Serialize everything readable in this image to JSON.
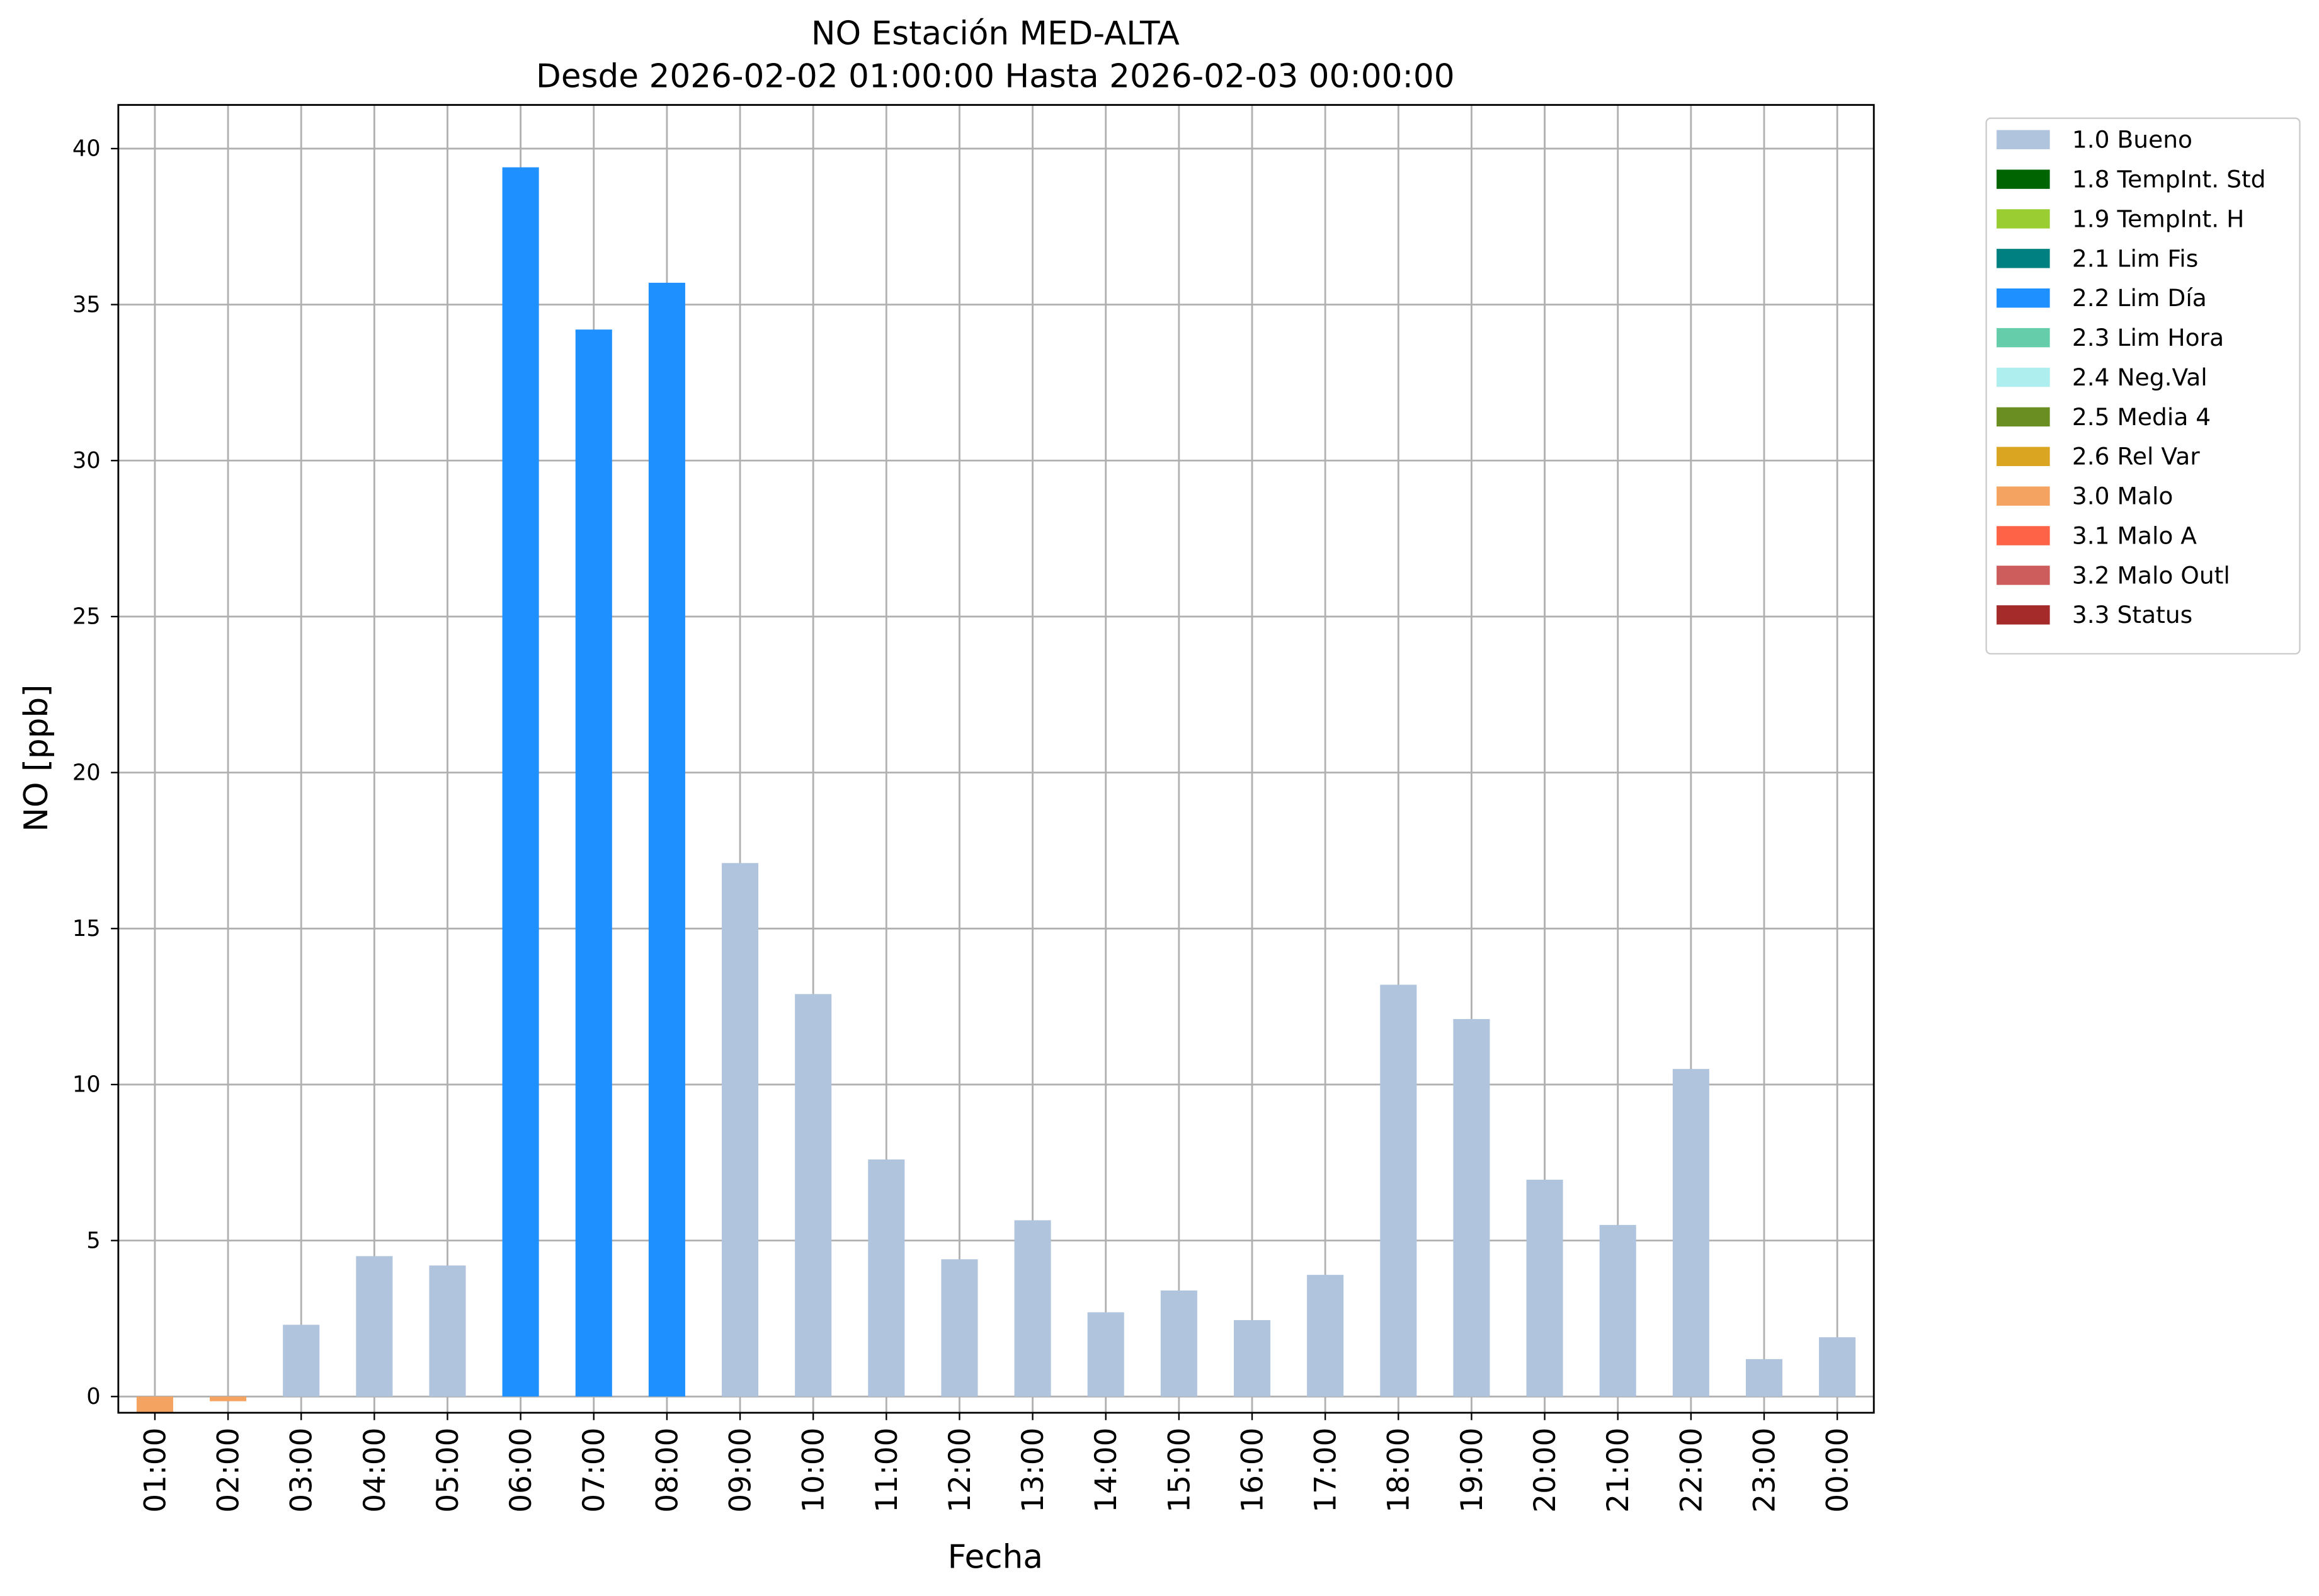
{
  "chart_data": {
    "type": "bar",
    "title": "NO Estación MED-ALTA",
    "subtitle": "Desde 2026-02-02 01:00:00 Hasta 2026-02-03 00:00:00",
    "x_label": "Fecha",
    "y_label": "NO [ppb]",
    "categories": [
      "01:00",
      "02:00",
      "03:00",
      "04:00",
      "05:00",
      "06:00",
      "07:00",
      "08:00",
      "09:00",
      "10:00",
      "11:00",
      "12:00",
      "13:00",
      "14:00",
      "15:00",
      "16:00",
      "17:00",
      "18:00",
      "19:00",
      "20:00",
      "21:00",
      "22:00",
      "23:00",
      "00:00"
    ],
    "series": [
      {
        "name": "1.0 Bueno",
        "color": "#b0c4de",
        "values": [
          null,
          null,
          2.3,
          4.5,
          4.2,
          null,
          null,
          null,
          17.1,
          12.9,
          7.6,
          4.4,
          5.65,
          2.7,
          3.4,
          2.45,
          3.9,
          13.2,
          12.1,
          6.95,
          5.5,
          10.5,
          1.2,
          1.9
        ]
      },
      {
        "name": "1.8 TempInt. Std",
        "color": "#006400",
        "values": [
          null,
          null,
          null,
          null,
          null,
          null,
          null,
          null,
          null,
          null,
          null,
          null,
          null,
          null,
          null,
          null,
          null,
          null,
          null,
          null,
          null,
          null,
          null,
          null
        ]
      },
      {
        "name": "1.9 TempInt. H",
        "color": "#9acd32",
        "values": [
          null,
          null,
          null,
          null,
          null,
          null,
          null,
          null,
          null,
          null,
          null,
          null,
          null,
          null,
          null,
          null,
          null,
          null,
          null,
          null,
          null,
          null,
          null,
          null
        ]
      },
      {
        "name": "2.1 Lim Fis",
        "color": "#008080",
        "values": [
          null,
          null,
          null,
          null,
          null,
          null,
          null,
          null,
          null,
          null,
          null,
          null,
          null,
          null,
          null,
          null,
          null,
          null,
          null,
          null,
          null,
          null,
          null,
          null
        ]
      },
      {
        "name": "2.2 Lim Día",
        "color": "#1e90ff",
        "values": [
          null,
          null,
          null,
          null,
          null,
          39.4,
          34.2,
          35.7,
          null,
          null,
          null,
          null,
          null,
          null,
          null,
          null,
          null,
          null,
          null,
          null,
          null,
          null,
          null,
          null
        ]
      },
      {
        "name": "2.3 Lim Hora",
        "color": "#66cdaa",
        "values": [
          null,
          null,
          null,
          null,
          null,
          null,
          null,
          null,
          null,
          null,
          null,
          null,
          null,
          null,
          null,
          null,
          null,
          null,
          null,
          null,
          null,
          null,
          null,
          null
        ]
      },
      {
        "name": "2.4 Neg.Val",
        "color": "#afeeee",
        "values": [
          null,
          null,
          null,
          null,
          null,
          null,
          null,
          null,
          null,
          null,
          null,
          null,
          null,
          null,
          null,
          null,
          null,
          null,
          null,
          null,
          null,
          null,
          null,
          null
        ]
      },
      {
        "name": "2.5 Media 4",
        "color": "#6b8e23",
        "values": [
          null,
          null,
          null,
          null,
          null,
          null,
          null,
          null,
          null,
          null,
          null,
          null,
          null,
          null,
          null,
          null,
          null,
          null,
          null,
          null,
          null,
          null,
          null,
          null
        ]
      },
      {
        "name": "2.6 Rel Var",
        "color": "#daa520",
        "values": [
          null,
          null,
          null,
          null,
          null,
          null,
          null,
          null,
          null,
          null,
          null,
          null,
          null,
          null,
          null,
          null,
          null,
          null,
          null,
          null,
          null,
          null,
          null,
          null
        ]
      },
      {
        "name": "3.0 Malo",
        "color": "#f4a460",
        "values": [
          -0.5,
          -0.15,
          null,
          null,
          null,
          null,
          null,
          null,
          null,
          null,
          null,
          null,
          null,
          null,
          null,
          null,
          null,
          null,
          null,
          null,
          null,
          null,
          null,
          null
        ]
      },
      {
        "name": "3.1 Malo A",
        "color": "#ff6347",
        "values": [
          null,
          null,
          null,
          null,
          null,
          null,
          null,
          null,
          null,
          null,
          null,
          null,
          null,
          null,
          null,
          null,
          null,
          null,
          null,
          null,
          null,
          null,
          null,
          null
        ]
      },
      {
        "name": "3.2 Malo Outl",
        "color": "#cd5c5c",
        "values": [
          null,
          null,
          null,
          null,
          null,
          null,
          null,
          null,
          null,
          null,
          null,
          null,
          null,
          null,
          null,
          null,
          null,
          null,
          null,
          null,
          null,
          null,
          null,
          null
        ]
      },
      {
        "name": "3.3 Status",
        "color": "#a52a2a",
        "values": [
          null,
          null,
          null,
          null,
          null,
          null,
          null,
          null,
          null,
          null,
          null,
          null,
          null,
          null,
          null,
          null,
          null,
          null,
          null,
          null,
          null,
          null,
          null,
          null
        ]
      }
    ],
    "ylim": [
      -0.52,
      41.4
    ],
    "yticks": [
      0,
      5,
      10,
      15,
      20,
      25,
      30,
      35,
      40
    ],
    "grid": true,
    "legend": "outside upper right"
  }
}
